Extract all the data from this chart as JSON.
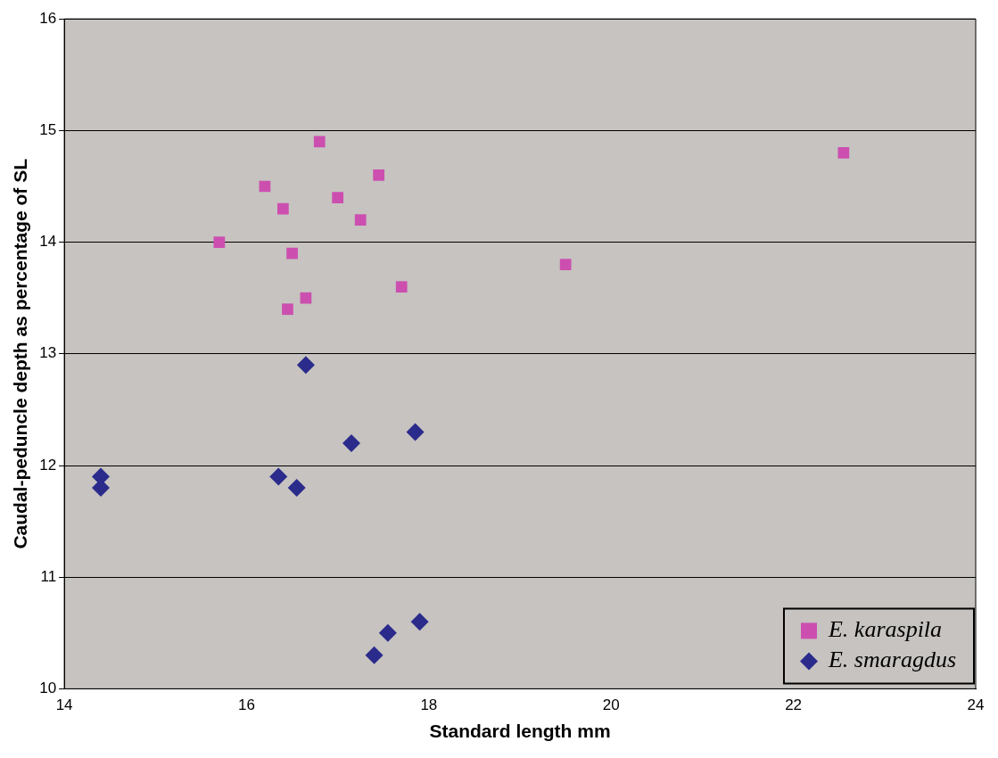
{
  "chart_data": {
    "type": "scatter",
    "xlabel": "Standard length mm",
    "ylabel": "Caudal-peduncle depth as percentage of SL",
    "xlim": [
      14,
      24
    ],
    "xticks": [
      14,
      16,
      18,
      20,
      22,
      24
    ],
    "ylim": [
      10,
      16
    ],
    "yticks": [
      10,
      11,
      12,
      13,
      14,
      15,
      16
    ],
    "grid": "y",
    "legend": "bottom right",
    "series": [
      {
        "name": "E. karaspila",
        "color": "#cc4fb0",
        "marker": "square",
        "x": [
          15.7,
          16.2,
          16.4,
          16.5,
          16.45,
          16.65,
          16.8,
          17.0,
          17.25,
          17.45,
          17.7,
          19.5,
          22.55
        ],
        "values": [
          14.0,
          14.5,
          14.3,
          13.9,
          13.4,
          13.5,
          14.9,
          14.4,
          14.2,
          14.6,
          13.6,
          13.8,
          14.8
        ]
      },
      {
        "name": "E. smaragdus",
        "color": "#2b2b8c",
        "marker": "diamond",
        "x": [
          14.4,
          14.4,
          16.65,
          16.35,
          16.55,
          17.15,
          17.85,
          17.4,
          17.55,
          17.9
        ],
        "values": [
          11.9,
          11.8,
          12.9,
          11.9,
          11.8,
          12.2,
          12.3,
          10.3,
          10.5,
          10.6
        ]
      }
    ]
  }
}
